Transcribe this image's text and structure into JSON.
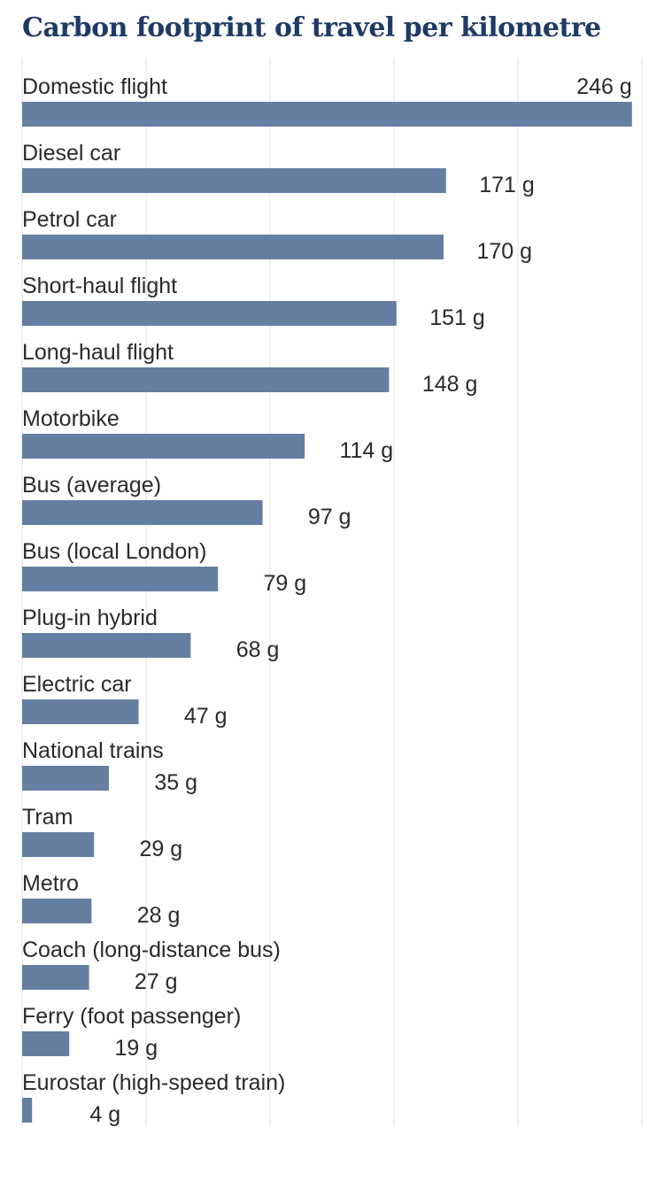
{
  "chart_data": {
    "type": "bar",
    "orientation": "horizontal",
    "title": "Carbon footprint of travel per kilometre",
    "xlabel": "",
    "ylabel": "",
    "unit": "g",
    "xlim": [
      0,
      250
    ],
    "grid": true,
    "categories": [
      "Domestic flight",
      "Diesel car",
      "Petrol car",
      "Short-haul flight",
      "Long-haul flight",
      "Motorbike",
      "Bus (average)",
      "Bus (local London)",
      "Plug-in hybrid",
      "Electric car",
      "National trains",
      "Tram",
      "Metro",
      "Coach (long-distance bus)",
      "Ferry (foot passenger)",
      "Eurostar (high-speed train)"
    ],
    "values": [
      246,
      171,
      170,
      151,
      148,
      114,
      97,
      79,
      68,
      47,
      35,
      29,
      28,
      27,
      19,
      4
    ],
    "value_labels": [
      "246 g",
      "171 g",
      "170 g",
      "151 g",
      "148 g",
      "114 g",
      "97 g",
      "79 g",
      "68 g",
      "47 g",
      "35 g",
      "29 g",
      "28 g",
      "27 g",
      "19 g",
      "4 g"
    ],
    "colors": {
      "bar": "#647fa1",
      "title": "#1f3a66",
      "text": "#2a2a2a",
      "grid": "#e2e2e2"
    }
  }
}
